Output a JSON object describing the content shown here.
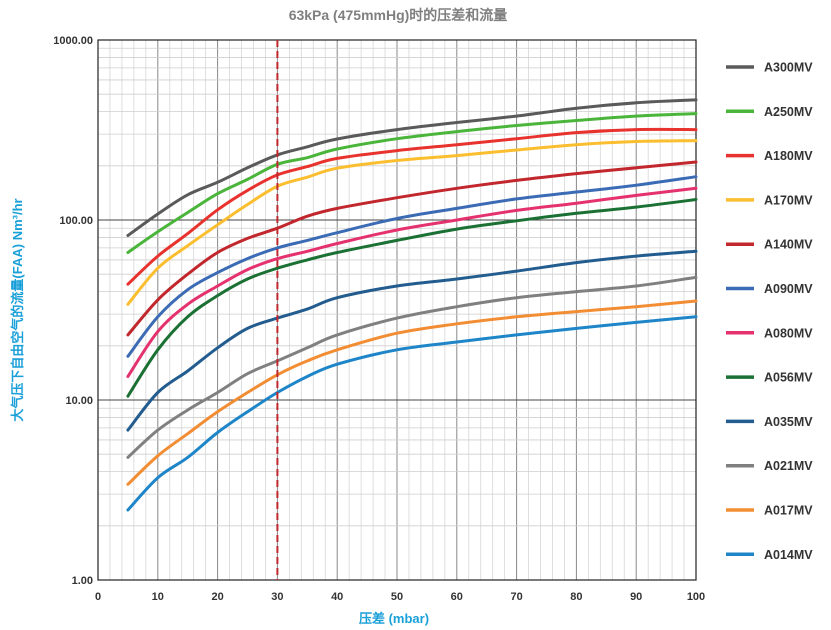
{
  "chart_data": {
    "type": "line",
    "title": "63kPa (475mmHg)时的压差和流量",
    "xlabel": "压差 (mbar)",
    "ylabel": "大气压下自由空气的流量(FAA) Nm³/hr",
    "xlim": [
      0,
      100
    ],
    "ylim": [
      1,
      1000
    ],
    "yscale": "log",
    "grid": true,
    "legend_position": "right",
    "x_ticks": [
      0,
      10,
      20,
      30,
      40,
      50,
      60,
      70,
      80,
      90,
      100
    ],
    "x_tick_labels": [
      "0",
      "10",
      "20",
      "30",
      "40",
      "50",
      "60",
      "70",
      "80",
      "90",
      "100"
    ],
    "y_ticks": [
      1,
      10,
      100,
      1000
    ],
    "y_tick_labels": [
      "1.00",
      "10.00",
      "100.00",
      "1000.00"
    ],
    "reference_line": {
      "x": 30,
      "color": "#c0282d"
    },
    "x": [
      5,
      10,
      15,
      20,
      25,
      30,
      35,
      40,
      50,
      60,
      70,
      80,
      90,
      100
    ],
    "series": [
      {
        "name": "A300MV",
        "color": "#5a5a5a",
        "values": [
          82,
          108,
          138,
          162,
          195,
          230,
          255,
          282,
          318,
          348,
          378,
          418,
          448,
          465
        ]
      },
      {
        "name": "A250MV",
        "color": "#4ab53a",
        "values": [
          66,
          86,
          110,
          140,
          168,
          204,
          222,
          248,
          283,
          310,
          335,
          357,
          378,
          390
        ]
      },
      {
        "name": "A180MV",
        "color": "#e8322e",
        "values": [
          44,
          63,
          84,
          114,
          146,
          178,
          198,
          220,
          243,
          262,
          283,
          306,
          318,
          318
        ]
      },
      {
        "name": "A170MV",
        "color": "#fbbe2e",
        "values": [
          34,
          54,
          72,
          94,
          122,
          154,
          173,
          194,
          214,
          228,
          245,
          262,
          273,
          276
        ]
      },
      {
        "name": "A140MV",
        "color": "#c1272d",
        "values": [
          23,
          36,
          50,
          66,
          79,
          90,
          105,
          116,
          133,
          150,
          166,
          181,
          195,
          210
        ]
      },
      {
        "name": "A090MV",
        "color": "#3b6bb5",
        "values": [
          17.5,
          29,
          41,
          51,
          61,
          70,
          77,
          85,
          102,
          116,
          131,
          143,
          156,
          174
        ]
      },
      {
        "name": "A080MV",
        "color": "#e5326f",
        "values": [
          13.5,
          24,
          34,
          43,
          53,
          61,
          67,
          74,
          88,
          100,
          113,
          124,
          137,
          150
        ]
      },
      {
        "name": "A056MV",
        "color": "#1b7034",
        "values": [
          10.5,
          19,
          29,
          38,
          47,
          54,
          60,
          66,
          77,
          89,
          99,
          109,
          118,
          130
        ]
      },
      {
        "name": "A035MV",
        "color": "#235c8e",
        "values": [
          6.8,
          11,
          14.5,
          19.5,
          25,
          28.5,
          32,
          37,
          43,
          47,
          52,
          58,
          63,
          67
        ]
      },
      {
        "name": "A021MV",
        "color": "#808080",
        "values": [
          4.8,
          6.8,
          8.8,
          11,
          14,
          16.5,
          19.5,
          23,
          28.5,
          33,
          37,
          40,
          43,
          48
        ]
      },
      {
        "name": "A017MV",
        "color": "#f28d34",
        "values": [
          3.4,
          4.9,
          6.5,
          8.6,
          11,
          13.8,
          16.5,
          19,
          23.5,
          26.5,
          29,
          31,
          33,
          35.5
        ]
      },
      {
        "name": "A014MV",
        "color": "#1e86c8",
        "values": [
          2.45,
          3.7,
          4.8,
          6.6,
          8.6,
          11,
          13.5,
          15.8,
          19,
          21,
          23,
          25,
          27,
          29
        ]
      }
    ]
  }
}
